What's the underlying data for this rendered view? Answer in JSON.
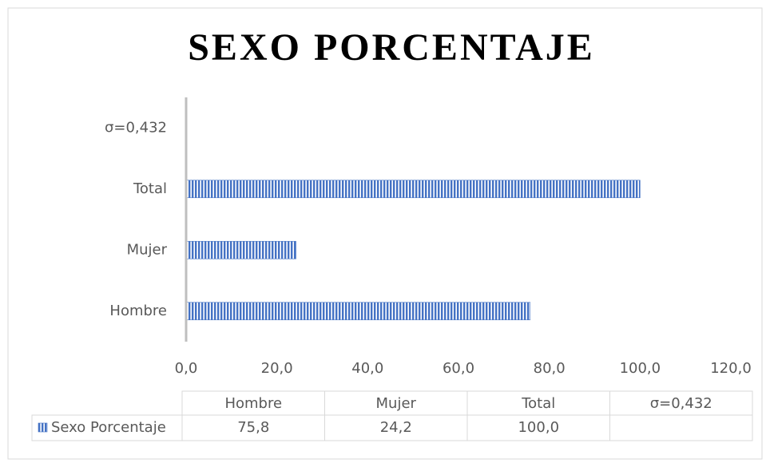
{
  "chart_data": {
    "type": "bar",
    "orientation": "horizontal",
    "title": "SEXO PORCENTAJE",
    "categories": [
      "Hombre",
      "Mujer",
      "Total",
      "σ=0,432"
    ],
    "series": [
      {
        "name": "Sexo Porcentaje",
        "color": "#4472c4",
        "values": [
          75.8,
          24.2,
          100.0,
          null
        ],
        "value_labels": [
          "75,8",
          "24,2",
          "100,0",
          null
        ]
      }
    ],
    "xlim": [
      0,
      120
    ],
    "xticks": [
      {
        "value": 0,
        "label": "0,0"
      },
      {
        "value": 20,
        "label": "20,0"
      },
      {
        "value": 40,
        "label": "40,0"
      },
      {
        "value": 60,
        "label": "60,0"
      },
      {
        "value": 80,
        "label": "80,0"
      },
      {
        "value": 100,
        "label": "100,0"
      },
      {
        "value": 120,
        "label": "120,0"
      }
    ],
    "grid": false,
    "data_table": true
  }
}
